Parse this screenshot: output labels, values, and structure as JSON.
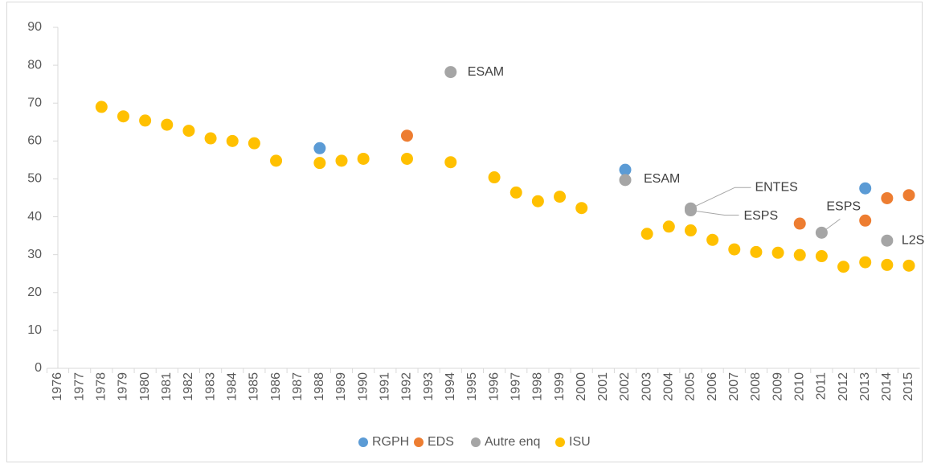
{
  "chart_data": {
    "type": "scatter",
    "xlim": [
      1976,
      2015
    ],
    "xticks": [
      1976,
      1977,
      1978,
      1979,
      1980,
      1981,
      1982,
      1983,
      1984,
      1985,
      1986,
      1987,
      1988,
      1989,
      1990,
      1991,
      1992,
      1993,
      1994,
      1995,
      1996,
      1997,
      1998,
      1999,
      2000,
      2001,
      2002,
      2003,
      2004,
      2005,
      2006,
      2007,
      2008,
      2009,
      2010,
      2011,
      2012,
      2013,
      2014,
      2015
    ],
    "ylim": [
      0,
      90
    ],
    "yticks": [
      0,
      10,
      20,
      30,
      40,
      50,
      60,
      70,
      80,
      90
    ],
    "legend": "bottom",
    "series": [
      {
        "name": "RGPH",
        "color": "#5b9bd5",
        "x": [
          1988,
          2002,
          2013
        ],
        "values": [
          58.1,
          52.4,
          47.5
        ]
      },
      {
        "name": "EDS",
        "color": "#ed7d31",
        "x": [
          1992,
          2010,
          2013,
          2014,
          2015
        ],
        "values": [
          61.4,
          38.2,
          39.0,
          44.9,
          45.7
        ]
      },
      {
        "name": "Autre enq",
        "color": "#a5a5a5",
        "x": [
          1994,
          2002,
          2005,
          2005,
          2011,
          2014
        ],
        "values": [
          78.2,
          49.7,
          42.2,
          41.7,
          35.8,
          33.7
        ],
        "point_labels": [
          "ESAM",
          "ESAM",
          "ENTES",
          "ESPS",
          "ESPS",
          "L2S"
        ]
      },
      {
        "name": "ISU",
        "color": "#ffc000",
        "x": [
          1978,
          1979,
          1980,
          1981,
          1982,
          1983,
          1984,
          1985,
          1986,
          1988,
          1989,
          1990,
          1992,
          1994,
          1996,
          1997,
          1998,
          1999,
          2000,
          2003,
          2004,
          2005,
          2006,
          2007,
          2008,
          2009,
          2010,
          2011,
          2012,
          2013,
          2014,
          2015
        ],
        "values": [
          69.0,
          66.5,
          65.4,
          64.3,
          62.7,
          60.7,
          60.0,
          59.4,
          54.8,
          54.2,
          54.8,
          55.3,
          55.3,
          54.4,
          50.4,
          46.4,
          44.1,
          45.3,
          42.3,
          35.5,
          37.4,
          36.4,
          33.9,
          31.4,
          30.7,
          30.5,
          29.9,
          29.6,
          26.8,
          28.0,
          27.3,
          27.1
        ]
      }
    ]
  }
}
